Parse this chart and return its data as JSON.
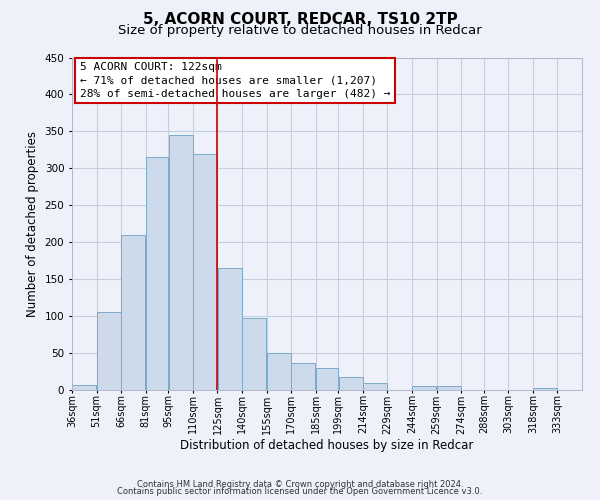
{
  "title": "5, ACORN COURT, REDCAR, TS10 2TP",
  "subtitle": "Size of property relative to detached houses in Redcar",
  "xlabel": "Distribution of detached houses by size in Redcar",
  "ylabel": "Number of detached properties",
  "bar_left_edges": [
    36,
    51,
    66,
    81,
    95,
    110,
    125,
    140,
    155,
    170,
    185,
    199,
    214,
    229,
    244,
    259,
    274,
    288,
    303,
    318
  ],
  "bar_widths": [
    15,
    15,
    15,
    14,
    15,
    15,
    15,
    15,
    15,
    15,
    14,
    15,
    15,
    15,
    15,
    15,
    14,
    15,
    15,
    15
  ],
  "bar_heights": [
    7,
    105,
    210,
    315,
    345,
    320,
    165,
    97,
    50,
    37,
    30,
    18,
    9,
    0,
    5,
    5,
    0,
    0,
    0,
    3
  ],
  "tick_labels": [
    "36sqm",
    "51sqm",
    "66sqm",
    "81sqm",
    "95sqm",
    "110sqm",
    "125sqm",
    "140sqm",
    "155sqm",
    "170sqm",
    "185sqm",
    "199sqm",
    "214sqm",
    "229sqm",
    "244sqm",
    "259sqm",
    "274sqm",
    "288sqm",
    "303sqm",
    "318sqm",
    "333sqm"
  ],
  "tick_positions": [
    36,
    51,
    66,
    81,
    95,
    110,
    125,
    140,
    155,
    170,
    185,
    199,
    214,
    229,
    244,
    259,
    274,
    288,
    303,
    318,
    333
  ],
  "xlim": [
    36,
    348
  ],
  "ylim": [
    0,
    450
  ],
  "yticks": [
    0,
    50,
    100,
    150,
    200,
    250,
    300,
    350,
    400,
    450
  ],
  "bar_color": "#ccdaeb",
  "bar_edge_color": "#7aaac8",
  "grid_color": "#c5cfe0",
  "bg_color": "#eef1fa",
  "vline_x": 125,
  "vline_color": "#cc0000",
  "annotation_line1": "5 ACORN COURT: 122sqm",
  "annotation_line2": "← 71% of detached houses are smaller (1,207)",
  "annotation_line3": "28% of semi-detached houses are larger (482) →",
  "footer_line1": "Contains HM Land Registry data © Crown copyright and database right 2024.",
  "footer_line2": "Contains public sector information licensed under the Open Government Licence v3.0.",
  "title_fontsize": 11,
  "subtitle_fontsize": 9.5,
  "axis_label_fontsize": 8.5,
  "tick_fontsize": 7,
  "annotation_fontsize": 8,
  "footer_fontsize": 6
}
